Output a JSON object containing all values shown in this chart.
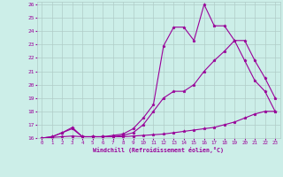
{
  "xlabel": "Windchill (Refroidissement éolien,°C)",
  "bg_color": "#cceee8",
  "grid_color": "#b0ccc8",
  "line_color": "#990099",
  "xlim": [
    -0.5,
    23.5
  ],
  "ylim": [
    16,
    26.2
  ],
  "xticks": [
    0,
    1,
    2,
    3,
    4,
    5,
    6,
    7,
    8,
    9,
    10,
    11,
    12,
    13,
    14,
    15,
    16,
    17,
    18,
    19,
    20,
    21,
    22,
    23
  ],
  "yticks": [
    16,
    17,
    18,
    19,
    20,
    21,
    22,
    23,
    24,
    25,
    26
  ],
  "line1_x": [
    0,
    1,
    2,
    3,
    4,
    5,
    6,
    7,
    8,
    9,
    10,
    11,
    12,
    13,
    14,
    15,
    16,
    17,
    18,
    19,
    20,
    21,
    22,
    23
  ],
  "line1_y": [
    16.0,
    16.05,
    16.1,
    16.15,
    16.1,
    16.1,
    16.1,
    16.1,
    16.1,
    16.15,
    16.2,
    16.25,
    16.3,
    16.4,
    16.5,
    16.6,
    16.7,
    16.8,
    17.0,
    17.2,
    17.5,
    17.8,
    18.0,
    18.0
  ],
  "line2_x": [
    0,
    1,
    2,
    3,
    4,
    5,
    6,
    7,
    8,
    9,
    10,
    11,
    12,
    13,
    14,
    15,
    16,
    17,
    18,
    19,
    20,
    21,
    22,
    23
  ],
  "line2_y": [
    16.0,
    16.1,
    16.4,
    16.7,
    16.1,
    16.1,
    16.1,
    16.1,
    16.2,
    16.4,
    17.0,
    18.0,
    19.0,
    19.5,
    19.5,
    20.0,
    21.0,
    21.8,
    22.5,
    23.3,
    21.8,
    20.3,
    19.5,
    18.0
  ],
  "line3_x": [
    0,
    1,
    2,
    3,
    4,
    5,
    6,
    7,
    8,
    9,
    10,
    11,
    12,
    13,
    14,
    15,
    16,
    17,
    18,
    19,
    20,
    21,
    22,
    23
  ],
  "line3_y": [
    16.0,
    16.1,
    16.4,
    16.8,
    16.1,
    16.1,
    16.1,
    16.2,
    16.3,
    16.7,
    17.5,
    18.5,
    22.9,
    24.3,
    24.3,
    23.3,
    26.0,
    24.4,
    24.4,
    23.3,
    23.3,
    21.8,
    20.5,
    19.0
  ]
}
